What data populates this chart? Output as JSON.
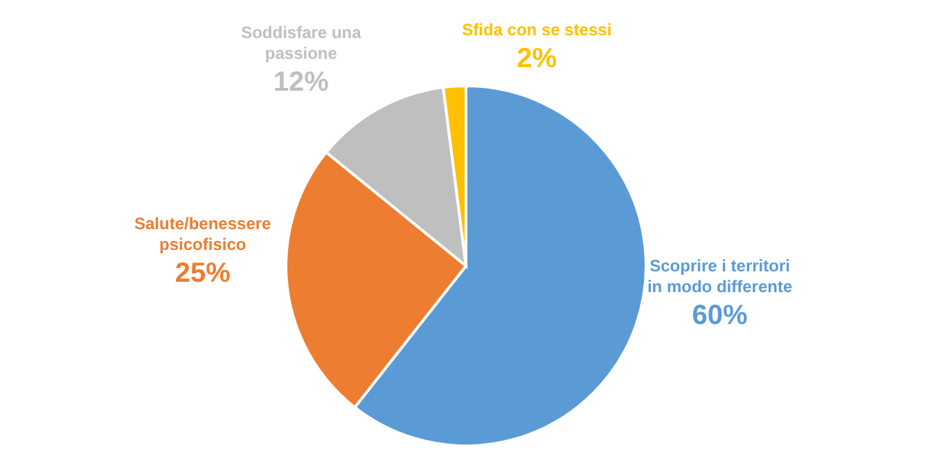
{
  "chart_data": {
    "type": "pie",
    "categories": [
      "Scoprire i territori in modo differente",
      "Salute/benessere psicofisico",
      "Soddisfare una passione",
      "Sfida con se stessi"
    ],
    "values": [
      60,
      25,
      12,
      2
    ],
    "value_labels": [
      "60%",
      "25%",
      "12%",
      "2%"
    ],
    "colors": [
      "#5b9bd5",
      "#ed7d31",
      "#bfbfbf",
      "#ffc000"
    ],
    "legend": false
  }
}
